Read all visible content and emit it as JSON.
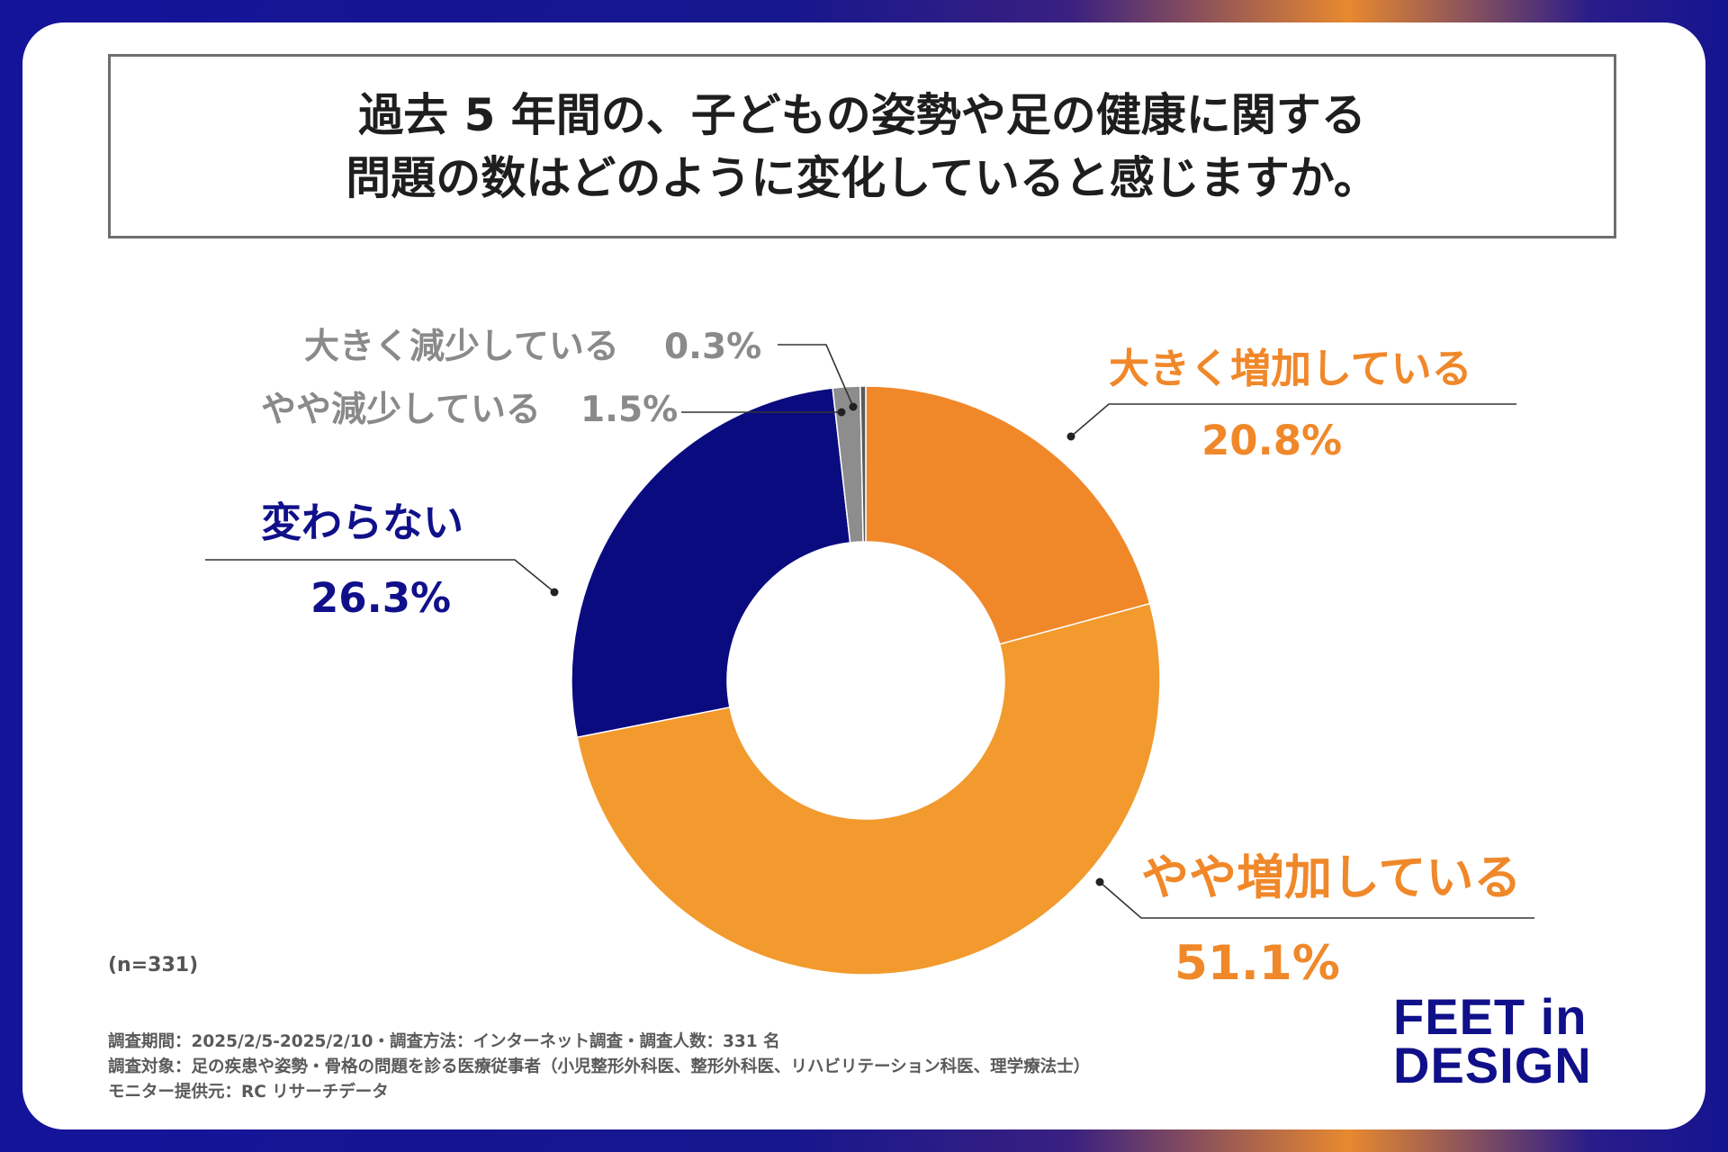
{
  "title": {
    "line1": "過去 5 年間の、子どもの姿勢や足の健康に関する",
    "line2": "問題の数はどのように変化していると感じますか。"
  },
  "chart_data": {
    "type": "pie",
    "style": "donut",
    "title": "過去 5 年間の、子どもの姿勢や足の健康に関する問題の数はどのように変化していると感じますか。",
    "categories": [
      "大きく増加している",
      "やや増加している",
      "変わらない",
      "やや減少している",
      "大きく減少している"
    ],
    "values": [
      20.8,
      51.1,
      26.3,
      1.5,
      0.3
    ],
    "value_labels": [
      "20.8%",
      "51.1%",
      "26.3%",
      "1.5%",
      "0.3%"
    ],
    "colors": [
      "#f0882a",
      "#f29a2e",
      "#0b0b80",
      "#8d8d8d",
      "#5a5a5a"
    ],
    "label_colors": [
      "#f0882a",
      "#f0882a",
      "#10108a",
      "#8a8a8a",
      "#8a8a8a"
    ],
    "start": "top",
    "direction": "clockwise",
    "sample": "(n=331)"
  },
  "footnotes": {
    "line1": "調査期間：2025/2/5-2025/2/10・調査方法：インターネット調査・調査人数：331 名",
    "line2": "調査対象：足の疾患や姿勢・骨格の問題を診る医療従事者（小児整形外科医、整形外科医、リハビリテーション科医、理学療法士）",
    "line3": "モニター提供元：RC リサーチデータ"
  },
  "logo": {
    "line1": "FEET in",
    "line2": "DESIGN"
  }
}
